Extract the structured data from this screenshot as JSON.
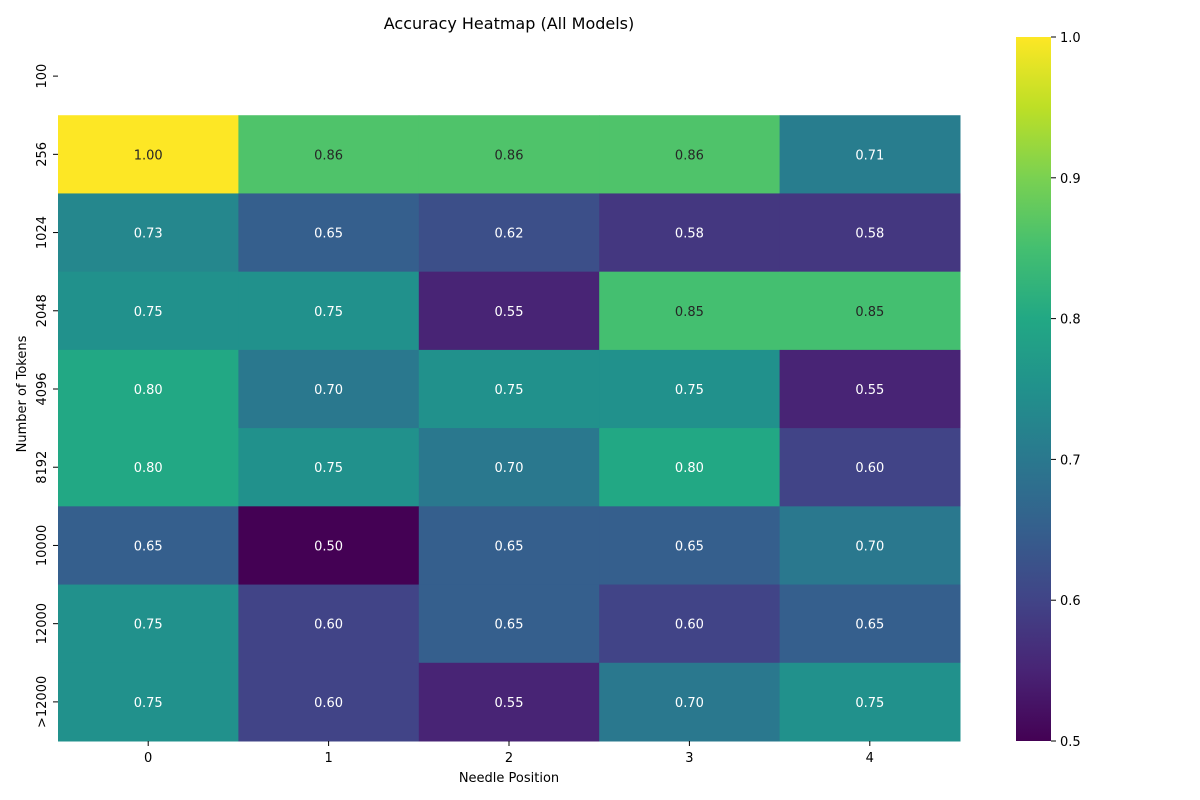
{
  "chart_data": {
    "type": "heatmap",
    "title": "Accuracy Heatmap (All Models)",
    "xlabel": "Needle Position",
    "ylabel": "Number of Tokens",
    "x_categories": [
      "0",
      "1",
      "2",
      "3",
      "4"
    ],
    "y_categories": [
      "100",
      "256",
      "1024",
      "2048",
      "4096",
      "8192",
      "10000",
      "12000",
      ">12000"
    ],
    "values": [
      [
        null,
        null,
        null,
        null,
        null
      ],
      [
        1.0,
        0.86,
        0.86,
        0.86,
        0.71
      ],
      [
        0.73,
        0.65,
        0.62,
        0.58,
        0.58
      ],
      [
        0.75,
        0.75,
        0.55,
        0.85,
        0.85
      ],
      [
        0.8,
        0.7,
        0.75,
        0.75,
        0.55
      ],
      [
        0.8,
        0.75,
        0.7,
        0.8,
        0.6
      ],
      [
        0.65,
        0.5,
        0.65,
        0.65,
        0.7
      ],
      [
        0.75,
        0.6,
        0.65,
        0.6,
        0.65
      ],
      [
        0.75,
        0.6,
        0.55,
        0.7,
        0.75
      ]
    ],
    "value_format": "0.00",
    "colormap": "viridis",
    "color_range": [
      0.5,
      1.0
    ],
    "colorbar_ticks": [
      "0.5",
      "0.6",
      "0.7",
      "0.8",
      "0.9",
      "1.0"
    ],
    "grid": false,
    "legend": "colorbar-right"
  }
}
